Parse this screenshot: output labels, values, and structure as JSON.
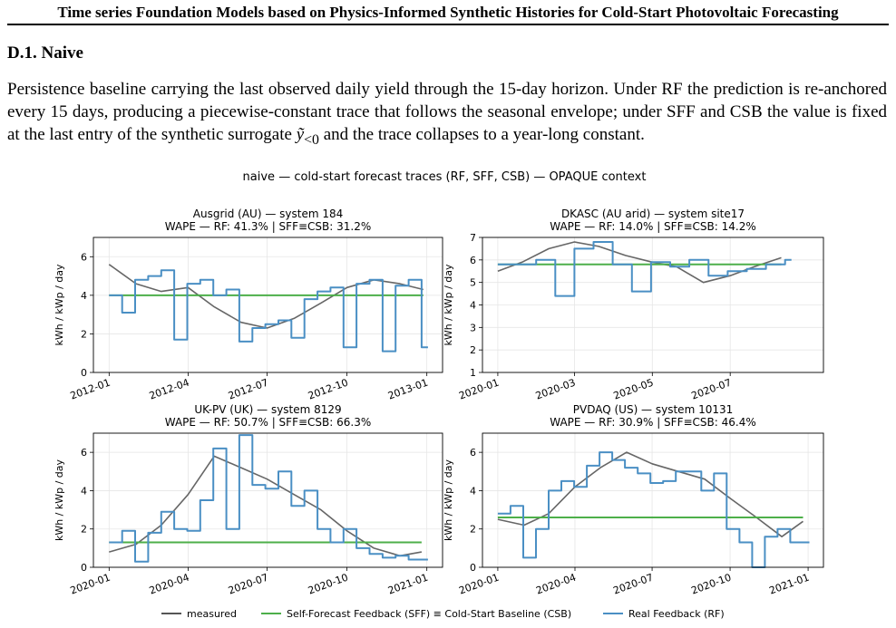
{
  "paper": {
    "running_head": "Time series Foundation Models based on Physics-Informed Synthetic Histories for Cold-Start Photovoltaic Forecasting",
    "section_title": "D.1. Naive",
    "para_1": "Persistence baseline carrying the last observed daily yield through the 15-day horizon. Under RF the prediction is re-anchored every 15 days, producing a piecewise-constant trace that follows the seasonal envelope; under SFF and CSB the value is fixed at the last entry of the synthetic surrogate ",
    "para_math": "ỹ",
    "para_sub": "<0",
    "para_2": " and the trace collapses to a year-long constant."
  },
  "figure": {
    "suptitle": "naive — cold-start forecast traces (RF, SFF, CSB) — OPAQUE context",
    "legend": [
      {
        "label": "measured",
        "color": "#555555"
      },
      {
        "label": "Self-Forecast Feedback (SFF) ≡ Cold-Start Baseline (CSB)",
        "color": "#4daf4a"
      },
      {
        "label": "Real Feedback (RF)",
        "color": "#4a8fc4"
      }
    ]
  },
  "chart_data": [
    {
      "type": "line",
      "title": "Ausgrid (AU) — system 184",
      "subtitle": "WAPE — RF: 41.3% | SFF≡CSB: 31.2%",
      "ylabel": "kWh / kWp / day",
      "xlim": [
        "2012-01-01",
        "2013-01-01"
      ],
      "xticks": [
        "2012-01",
        "2012-04",
        "2012-07",
        "2012-10",
        "2013-01"
      ],
      "ylim": [
        0,
        7
      ],
      "yticks": [
        0,
        2,
        4,
        6
      ],
      "grid": true,
      "series": [
        {
          "name": "measured",
          "x": [
            "2012-01-01",
            "2012-02-01",
            "2012-03-01",
            "2012-04-01",
            "2012-05-01",
            "2012-06-01",
            "2012-07-01",
            "2012-08-01",
            "2012-09-01",
            "2012-10-01",
            "2012-11-01",
            "2012-12-01",
            "2012-12-28"
          ],
          "values": [
            5.6,
            4.6,
            4.2,
            4.4,
            3.4,
            2.6,
            2.3,
            2.8,
            3.6,
            4.4,
            4.8,
            4.6,
            4.3
          ]
        },
        {
          "name": "Self-Forecast Feedback (SFF) ≡ Cold-Start Baseline (CSB)",
          "x": [
            "2012-01-01",
            "2012-12-28"
          ],
          "values": [
            4.0,
            4.0
          ]
        },
        {
          "name": "Real Feedback (RF)",
          "x": [
            "2012-01-01",
            "2012-01-16",
            "2012-01-31",
            "2012-02-15",
            "2012-03-01",
            "2012-03-16",
            "2012-03-31",
            "2012-04-15",
            "2012-04-30",
            "2012-05-15",
            "2012-05-30",
            "2012-06-14",
            "2012-06-29",
            "2012-07-14",
            "2012-07-29",
            "2012-08-13",
            "2012-08-28",
            "2012-09-12",
            "2012-09-27",
            "2012-10-12",
            "2012-10-27",
            "2012-11-11",
            "2012-11-26",
            "2012-12-11",
            "2012-12-26"
          ],
          "values": [
            4.0,
            3.1,
            4.8,
            5.0,
            5.3,
            1.7,
            4.6,
            4.8,
            4.0,
            4.3,
            1.6,
            2.3,
            2.5,
            2.7,
            1.8,
            3.8,
            4.2,
            4.4,
            1.3,
            4.6,
            4.8,
            1.1,
            4.5,
            4.8,
            1.3
          ]
        }
      ]
    },
    {
      "type": "line",
      "title": "DKASC (AU arid) — system site17",
      "subtitle": "WAPE — RF: 14.0% | SFF≡CSB: 14.2%",
      "ylabel": "kWh / kWp / day",
      "xlim": [
        "2020-01-01",
        "2020-08-31"
      ],
      "xticks": [
        "2020-01",
        "2020-03",
        "2020-05",
        "2020-07"
      ],
      "ylim": [
        1,
        7
      ],
      "yticks": [
        1,
        2,
        3,
        4,
        5,
        6,
        7
      ],
      "grid": true,
      "series": [
        {
          "name": "measured",
          "x": [
            "2020-01-01",
            "2020-01-20",
            "2020-02-10",
            "2020-03-01",
            "2020-03-20",
            "2020-04-10",
            "2020-05-01",
            "2020-05-20",
            "2020-06-10",
            "2020-07-01",
            "2020-07-20",
            "2020-08-10"
          ],
          "values": [
            5.5,
            5.9,
            6.5,
            6.8,
            6.6,
            6.2,
            5.9,
            5.7,
            5.0,
            5.3,
            5.7,
            6.1
          ]
        },
        {
          "name": "Self-Forecast Feedback (SFF) ≡ Cold-Start Baseline (CSB)",
          "x": [
            "2020-01-01",
            "2020-08-10"
          ],
          "values": [
            5.8,
            5.8
          ]
        },
        {
          "name": "Real Feedback (RF)",
          "x": [
            "2020-01-01",
            "2020-01-16",
            "2020-01-31",
            "2020-02-15",
            "2020-03-01",
            "2020-03-16",
            "2020-03-31",
            "2020-04-15",
            "2020-04-30",
            "2020-05-15",
            "2020-05-30",
            "2020-06-14",
            "2020-06-29",
            "2020-07-14",
            "2020-07-29",
            "2020-08-13"
          ],
          "values": [
            5.8,
            5.8,
            6.0,
            4.4,
            6.5,
            6.8,
            5.8,
            4.6,
            5.9,
            5.7,
            6.0,
            5.3,
            5.5,
            5.6,
            5.8,
            6.0
          ]
        }
      ]
    },
    {
      "type": "line",
      "title": "UK-PV (UK) — system 8129",
      "subtitle": "WAPE — RF: 50.7% | SFF≡CSB: 66.3%",
      "ylabel": "kWh / kWp / day",
      "xlim": [
        "2020-01-01",
        "2021-01-01"
      ],
      "xticks": [
        "2020-01",
        "2020-04",
        "2020-07",
        "2020-10",
        "2021-01"
      ],
      "ylim": [
        0,
        7
      ],
      "yticks": [
        0,
        2,
        4,
        6
      ],
      "grid": true,
      "series": [
        {
          "name": "measured",
          "x": [
            "2020-01-01",
            "2020-02-01",
            "2020-03-01",
            "2020-04-01",
            "2020-05-01",
            "2020-06-01",
            "2020-07-01",
            "2020-08-01",
            "2020-09-01",
            "2020-10-01",
            "2020-11-01",
            "2020-12-01",
            "2020-12-26"
          ],
          "values": [
            0.8,
            1.2,
            2.2,
            3.8,
            5.8,
            5.2,
            4.6,
            3.8,
            3.0,
            1.9,
            1.0,
            0.6,
            0.8
          ]
        },
        {
          "name": "Self-Forecast Feedback (SFF) ≡ Cold-Start Baseline (CSB)",
          "x": [
            "2020-01-01",
            "2020-12-26"
          ],
          "values": [
            1.3,
            1.3
          ]
        },
        {
          "name": "Real Feedback (RF)",
          "x": [
            "2020-01-01",
            "2020-01-16",
            "2020-01-31",
            "2020-02-15",
            "2020-03-01",
            "2020-03-16",
            "2020-03-31",
            "2020-04-15",
            "2020-04-30",
            "2020-05-15",
            "2020-05-30",
            "2020-06-14",
            "2020-06-29",
            "2020-07-14",
            "2020-07-29",
            "2020-08-13",
            "2020-08-28",
            "2020-09-12",
            "2020-09-27",
            "2020-10-12",
            "2020-10-27",
            "2020-11-11",
            "2020-11-26",
            "2020-12-11",
            "2020-12-26"
          ],
          "values": [
            1.3,
            1.9,
            0.3,
            1.8,
            2.9,
            2.0,
            1.9,
            3.5,
            6.2,
            2.0,
            6.9,
            4.3,
            4.1,
            5.0,
            3.2,
            4.0,
            2.0,
            1.3,
            2.0,
            1.0,
            0.7,
            0.5,
            0.6,
            0.4,
            0.4
          ]
        }
      ]
    },
    {
      "type": "line",
      "title": "PVDAQ (US) — system 10131",
      "subtitle": "WAPE — RF: 30.9% | SFF≡CSB: 46.4%",
      "ylabel": "kWh / kWp / day",
      "xlim": [
        "2020-01-01",
        "2021-01-01"
      ],
      "xticks": [
        "2020-01",
        "2020-04",
        "2020-07",
        "2020-10",
        "2021-01"
      ],
      "ylim": [
        0,
        7
      ],
      "yticks": [
        0,
        2,
        4,
        6
      ],
      "grid": true,
      "series": [
        {
          "name": "measured",
          "x": [
            "2020-01-01",
            "2020-02-01",
            "2020-03-01",
            "2020-04-01",
            "2020-05-01",
            "2020-06-01",
            "2020-07-01",
            "2020-08-01",
            "2020-09-01",
            "2020-10-01",
            "2020-11-01",
            "2020-12-01",
            "2020-12-26"
          ],
          "values": [
            2.5,
            2.2,
            2.8,
            4.2,
            5.2,
            6.0,
            5.4,
            5.0,
            4.6,
            3.6,
            2.6,
            1.6,
            2.4
          ]
        },
        {
          "name": "Self-Forecast Feedback (SFF) ≡ Cold-Start Baseline (CSB)",
          "x": [
            "2020-01-01",
            "2020-12-26"
          ],
          "values": [
            2.6,
            2.6
          ]
        },
        {
          "name": "Real Feedback (RF)",
          "x": [
            "2020-01-01",
            "2020-01-16",
            "2020-01-31",
            "2020-02-15",
            "2020-03-01",
            "2020-03-16",
            "2020-03-31",
            "2020-04-15",
            "2020-04-30",
            "2020-05-15",
            "2020-05-30",
            "2020-06-14",
            "2020-06-29",
            "2020-07-14",
            "2020-07-29",
            "2020-08-13",
            "2020-08-28",
            "2020-09-12",
            "2020-09-27",
            "2020-10-12",
            "2020-10-27",
            "2020-11-11",
            "2020-11-26",
            "2020-12-11",
            "2020-12-26"
          ],
          "values": [
            2.8,
            3.2,
            0.5,
            2.0,
            4.0,
            4.5,
            4.2,
            5.3,
            6.0,
            5.6,
            5.2,
            4.9,
            4.4,
            4.5,
            5.0,
            5.0,
            4.0,
            4.9,
            2.0,
            1.3,
            0.0,
            1.6,
            2.0,
            1.3,
            1.3
          ]
        }
      ]
    }
  ]
}
